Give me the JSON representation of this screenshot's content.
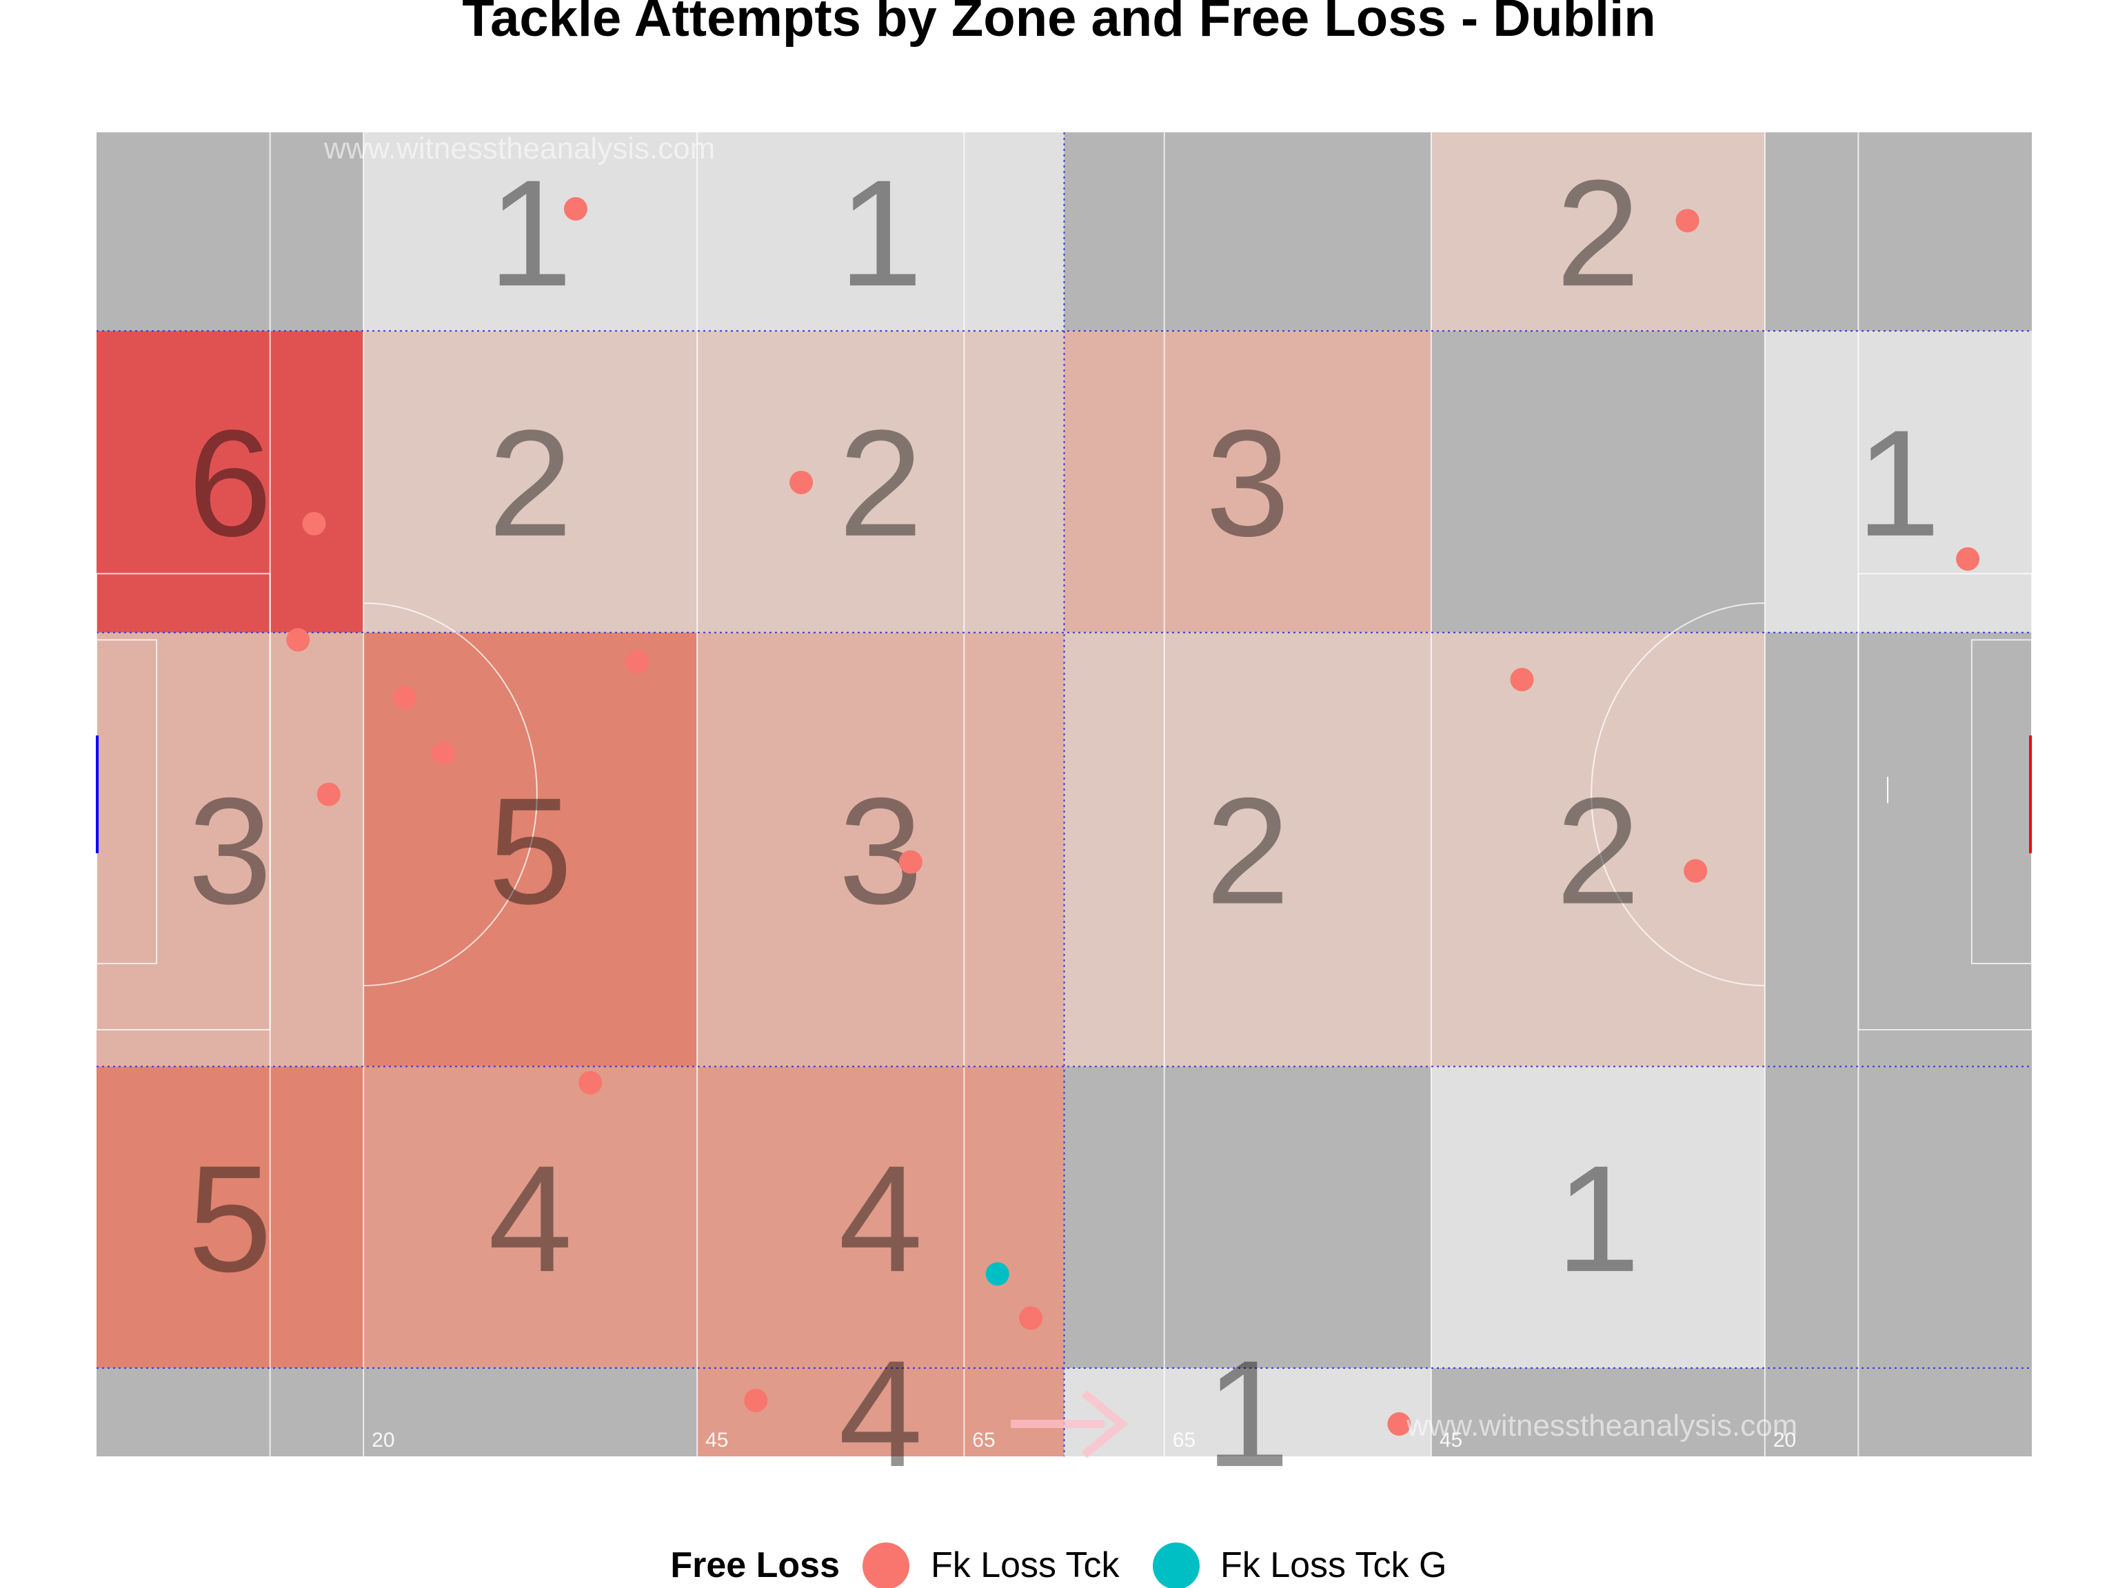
{
  "chart_data": {
    "type": "heatmap",
    "title": "Tackle Attempts by Zone and Free Loss - Dublin",
    "watermarks": [
      "www.witnesstheanalysis.com",
      "www.witnesstheanalysis.com"
    ],
    "yard_labels": [
      "20",
      "45",
      "65",
      "65",
      "45",
      "20"
    ],
    "columns": 6,
    "rows": 5,
    "zones": [
      {
        "col": 0,
        "row": 0,
        "count": null
      },
      {
        "col": 1,
        "row": 0,
        "count": 1
      },
      {
        "col": 2,
        "row": 0,
        "count": 1
      },
      {
        "col": 3,
        "row": 0,
        "count": null
      },
      {
        "col": 4,
        "row": 0,
        "count": 2
      },
      {
        "col": 5,
        "row": 0,
        "count": null
      },
      {
        "col": 0,
        "row": 1,
        "count": 6
      },
      {
        "col": 1,
        "row": 1,
        "count": 2
      },
      {
        "col": 2,
        "row": 1,
        "count": 2
      },
      {
        "col": 3,
        "row": 1,
        "count": 3
      },
      {
        "col": 4,
        "row": 1,
        "count": null
      },
      {
        "col": 5,
        "row": 1,
        "count": 1
      },
      {
        "col": 0,
        "row": 2,
        "count": 3
      },
      {
        "col": 1,
        "row": 2,
        "count": 5
      },
      {
        "col": 2,
        "row": 2,
        "count": 3
      },
      {
        "col": 3,
        "row": 2,
        "count": 2
      },
      {
        "col": 4,
        "row": 2,
        "count": 2
      },
      {
        "col": 5,
        "row": 2,
        "count": null
      },
      {
        "col": 0,
        "row": 3,
        "count": 5
      },
      {
        "col": 1,
        "row": 3,
        "count": 4
      },
      {
        "col": 2,
        "row": 3,
        "count": 4
      },
      {
        "col": 3,
        "row": 3,
        "count": null
      },
      {
        "col": 4,
        "row": 3,
        "count": 1
      },
      {
        "col": 5,
        "row": 3,
        "count": null
      },
      {
        "col": 0,
        "row": 4,
        "count": null
      },
      {
        "col": 1,
        "row": 4,
        "count": null
      },
      {
        "col": 2,
        "row": 4,
        "count": 4
      },
      {
        "col": 3,
        "row": 4,
        "count": 1
      },
      {
        "col": 4,
        "row": 4,
        "count": null
      },
      {
        "col": 5,
        "row": 4,
        "count": null
      }
    ],
    "colors": {
      "count_1": "#e0e0e0",
      "count_2": "#dfc8bf",
      "count_3": "#e0b2a6",
      "count_4": "#e09b8a",
      "count_5": "#e08370",
      "count_6": "#e05252",
      "empty": "#b5b5b5",
      "fk_loss_tck": "#f8766d",
      "fk_loss_tck_g": "#00bfc4"
    },
    "x_range": [
      0,
      145
    ],
    "y_range": [
      0,
      90
    ],
    "points": [
      {
        "x": 35.9,
        "y": 84.8,
        "type": "Fk Loss Tck"
      },
      {
        "x": 119.2,
        "y": 84.0,
        "type": "Fk Loss Tck"
      },
      {
        "x": 16.3,
        "y": 63.4,
        "type": "Fk Loss Tck"
      },
      {
        "x": 52.8,
        "y": 66.2,
        "type": "Fk Loss Tck"
      },
      {
        "x": 140.2,
        "y": 61.0,
        "type": "Fk Loss Tck"
      },
      {
        "x": 15.1,
        "y": 55.5,
        "type": "Fk Loss Tck"
      },
      {
        "x": 40.5,
        "y": 54.0,
        "type": "Fk Loss Tck"
      },
      {
        "x": 23.1,
        "y": 51.6,
        "type": "Fk Loss Tck"
      },
      {
        "x": 106.8,
        "y": 52.8,
        "type": "Fk Loss Tck"
      },
      {
        "x": 26.0,
        "y": 47.8,
        "type": "Fk Loss Tck"
      },
      {
        "x": 17.4,
        "y": 45.0,
        "type": "Fk Loss Tck"
      },
      {
        "x": 61.0,
        "y": 40.4,
        "type": "Fk Loss Tck"
      },
      {
        "x": 119.8,
        "y": 39.8,
        "type": "Fk Loss Tck"
      },
      {
        "x": 37.0,
        "y": 25.4,
        "type": "Fk Loss Tck"
      },
      {
        "x": 67.5,
        "y": 12.4,
        "type": "Fk Loss Tck G"
      },
      {
        "x": 70.0,
        "y": 9.4,
        "type": "Fk Loss Tck"
      },
      {
        "x": 49.4,
        "y": 3.8,
        "type": "Fk Loss Tck"
      },
      {
        "x": 97.6,
        "y": 2.2,
        "type": "Fk Loss Tck"
      }
    ],
    "legend": {
      "position": "bottom",
      "title": "Free Loss",
      "entries": [
        {
          "label": "Fk Loss Tck",
          "color": "#f8766d"
        },
        {
          "label": "Fk Loss Tck G",
          "color": "#00bfc4"
        }
      ]
    }
  }
}
